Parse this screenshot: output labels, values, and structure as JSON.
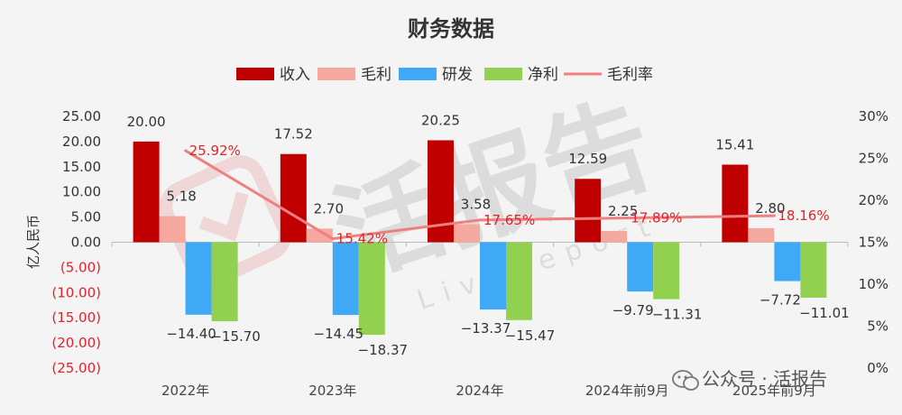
{
  "chart_data": {
    "type": "bar",
    "title": "财务数据",
    "ylabel": "亿人民币",
    "categories": [
      "2022年",
      "2023年",
      "2024年",
      "2024年前9月",
      "2025年前9月"
    ],
    "series": [
      {
        "name": "收入",
        "color": "#c00000",
        "values": [
          20.0,
          17.52,
          20.25,
          12.59,
          15.41
        ],
        "labels": [
          "20.00",
          "17.52",
          "20.25",
          "12.59",
          "15.41"
        ]
      },
      {
        "name": "毛利",
        "color": "#f4a89e",
        "values": [
          5.18,
          2.7,
          3.58,
          2.25,
          2.8
        ],
        "labels": [
          "5.18",
          "2.70",
          "3.58",
          "2.25",
          "2.80"
        ]
      },
      {
        "name": "研发",
        "color": "#3fa9f5",
        "values": [
          -14.4,
          -14.45,
          -13.37,
          -9.79,
          -7.72
        ],
        "labels": [
          "−14.40",
          "−14.45",
          "−13.37",
          "−9.79",
          "−7.72"
        ]
      },
      {
        "name": "净利",
        "color": "#92d050",
        "values": [
          -15.7,
          -18.37,
          -15.47,
          -11.31,
          -11.01
        ],
        "labels": [
          "−15.70",
          "−18.37",
          "−15.47",
          "−11.31",
          "−11.01"
        ]
      }
    ],
    "line": {
      "name": "毛利率",
      "color": "#f08080",
      "values": [
        25.92,
        15.42,
        17.65,
        17.89,
        18.16
      ],
      "labels": [
        "25.92%",
        "15.42%",
        "17.65%",
        "17.89%",
        "18.16%"
      ]
    },
    "y_left": {
      "min": -25,
      "max": 25,
      "ticks": [
        25,
        20,
        15,
        10,
        5,
        0,
        -5,
        -10,
        -15,
        -20,
        -25
      ],
      "tick_labels": [
        "25.00",
        "20.00",
        "15.00",
        "10.00",
        "5.00",
        "0.00",
        "(5.00)",
        "(10.00)",
        "(15.00)",
        "(20.00)",
        "(25.00)"
      ],
      "negative_color": "#e0242b",
      "positive_color": "#333333"
    },
    "y_right": {
      "min": 0,
      "max": 30,
      "ticks": [
        30,
        25,
        20,
        15,
        10,
        5,
        0
      ],
      "tick_labels": [
        "30%",
        "25%",
        "20%",
        "15%",
        "10%",
        "5%",
        "0%"
      ]
    },
    "grid": false,
    "legend_position": "top-center"
  },
  "watermark": {
    "center_text": "活报告",
    "center_sub": "LiveReport",
    "corner_text": "公众号 · 活报告"
  }
}
